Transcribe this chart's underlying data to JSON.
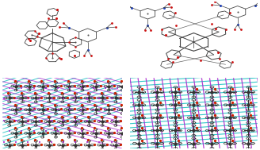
{
  "background_color": "#ffffff",
  "colors": {
    "C": "#555555",
    "O": "#cc1111",
    "N": "#2244bb",
    "H": "#bbbbbb",
    "bond": "#444444",
    "cyan": "#00bbbb",
    "purple": "#aa22cc",
    "dark": "#333333",
    "red": "#cc2200",
    "light_gray": "#dddddd"
  },
  "figsize": [
    3.28,
    1.89
  ],
  "dpi": 100
}
